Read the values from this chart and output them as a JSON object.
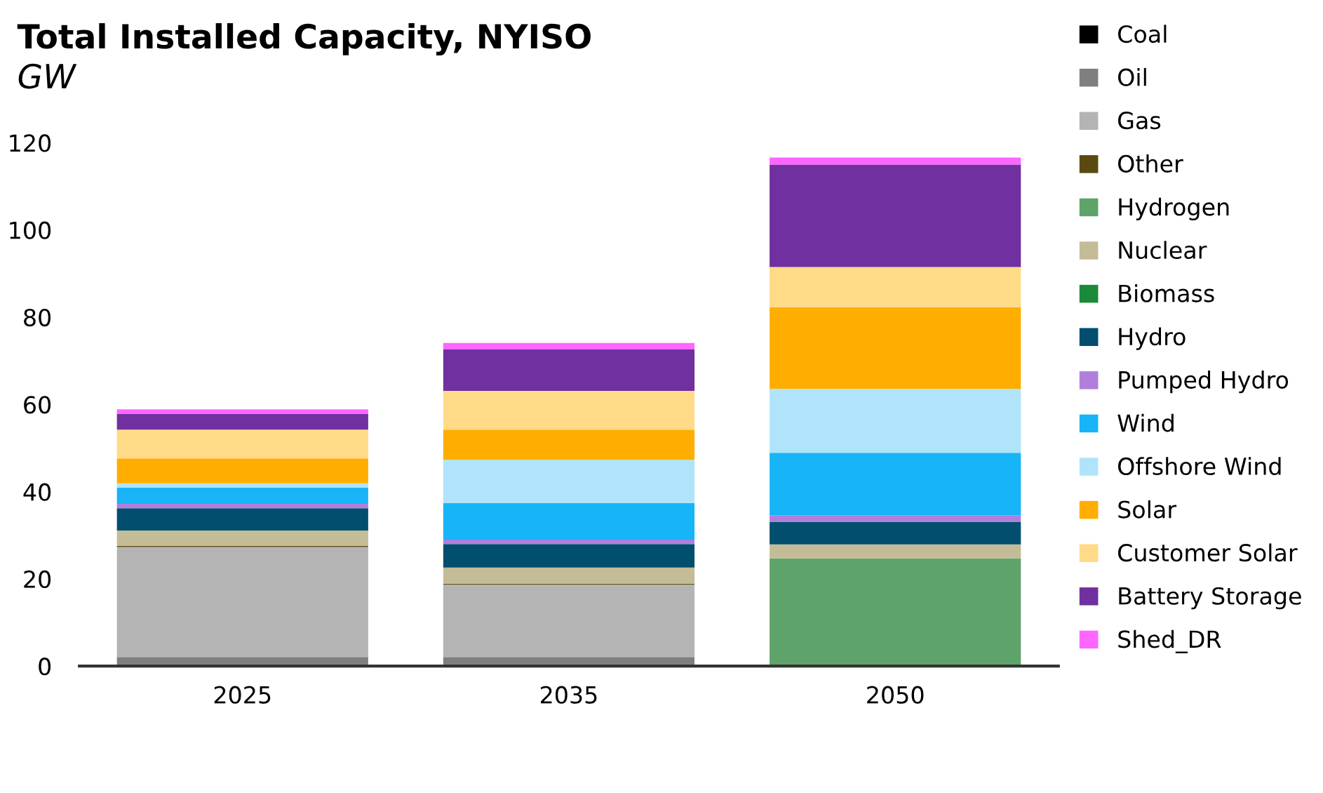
{
  "chart_data": {
    "type": "bar",
    "title": "Total Installed Capacity, NYISO",
    "ylabel": "GW",
    "stacked": true,
    "categories": [
      "2025",
      "2035",
      "2050"
    ],
    "series": [
      {
        "name": "Coal",
        "color": "#000000",
        "values": [
          0,
          0,
          0
        ]
      },
      {
        "name": "Oil",
        "color": "#7f7f7f",
        "values": [
          2.1,
          2.1,
          0
        ]
      },
      {
        "name": "Gas",
        "color": "#b4b4b4",
        "values": [
          25.2,
          16.6,
          0
        ]
      },
      {
        "name": "Other",
        "color": "#5a4a10",
        "values": [
          0.3,
          0.2,
          0
        ]
      },
      {
        "name": "Hydrogen",
        "color": "#5ea36a",
        "values": [
          0,
          0,
          24.7
        ]
      },
      {
        "name": "Nuclear",
        "color": "#c4bc96",
        "values": [
          3.5,
          3.7,
          3.2
        ]
      },
      {
        "name": "Biomass",
        "color": "#1a8a3a",
        "values": [
          0,
          0,
          0
        ]
      },
      {
        "name": "Hydro",
        "color": "#024e6e",
        "values": [
          5.1,
          5.4,
          5.2
        ]
      },
      {
        "name": "Pumped Hydro",
        "color": "#b07fdc",
        "values": [
          1.0,
          1.0,
          1.5
        ]
      },
      {
        "name": "Wind",
        "color": "#17b4f8",
        "values": [
          3.7,
          8.4,
          14.3
        ]
      },
      {
        "name": "Offshore Wind",
        "color": "#afe4fb",
        "values": [
          1.0,
          9.9,
          14.7
        ]
      },
      {
        "name": "Solar",
        "color": "#ffae00",
        "values": [
          5.7,
          6.9,
          18.7
        ]
      },
      {
        "name": "Customer Solar",
        "color": "#ffdb87",
        "values": [
          6.6,
          8.9,
          9.2
        ]
      },
      {
        "name": "Battery Storage",
        "color": "#7030a0",
        "values": [
          3.6,
          9.5,
          23.5
        ]
      },
      {
        "name": "Shed_DR",
        "color": "#ff66ff",
        "values": [
          1.1,
          1.5,
          1.6
        ]
      }
    ],
    "ylim": [
      0,
      120
    ],
    "yticks": [
      0,
      20,
      40,
      60,
      80,
      100,
      120
    ],
    "grid": false,
    "legend": "right"
  }
}
